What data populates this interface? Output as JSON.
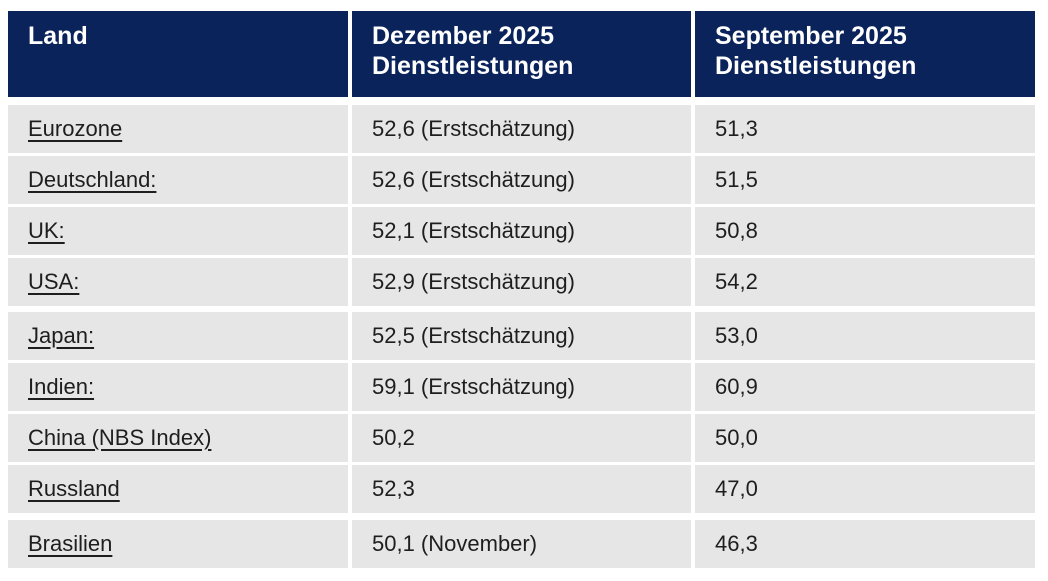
{
  "colors": {
    "header_bg": "#0a235a",
    "header_text": "#ffffff",
    "row_bg": "#e6e6e6",
    "body_text": "#1e1e1e"
  },
  "table": {
    "columns": [
      {
        "line1": "Land"
      },
      {
        "line1": "Dezember 2025",
        "line2": "Dienstleistungen"
      },
      {
        "line1": "September 2025",
        "line2": "Dienstleistungen"
      }
    ],
    "rows": [
      {
        "land": "Eurozone",
        "dezember": "52,6 (Erstschätzung)",
        "september": "51,3"
      },
      {
        "land": "Deutschland:",
        "dezember": "52,6 (Erstschätzung)",
        "september": "51,5"
      },
      {
        "land": "UK:",
        "dezember": "52,1 (Erstschätzung)",
        "september": "50,8"
      },
      {
        "land": "USA:",
        "dezember": "52,9 (Erstschätzung)",
        "september": "54,2"
      },
      {
        "land": "Japan:",
        "dezember": "52,5 (Erstschätzung)",
        "september": "53,0"
      },
      {
        "land": "Indien:",
        "dezember": "59,1 (Erstschätzung)",
        "september": "60,9"
      },
      {
        "land": "China (NBS Index)",
        "dezember": "50,2",
        "september": "50,0"
      },
      {
        "land": "Russland",
        "dezember": "52,3",
        "september": "47,0"
      },
      {
        "land": "Brasilien",
        "dezember": "50,1 (November)",
        "september": "46,3"
      }
    ]
  }
}
